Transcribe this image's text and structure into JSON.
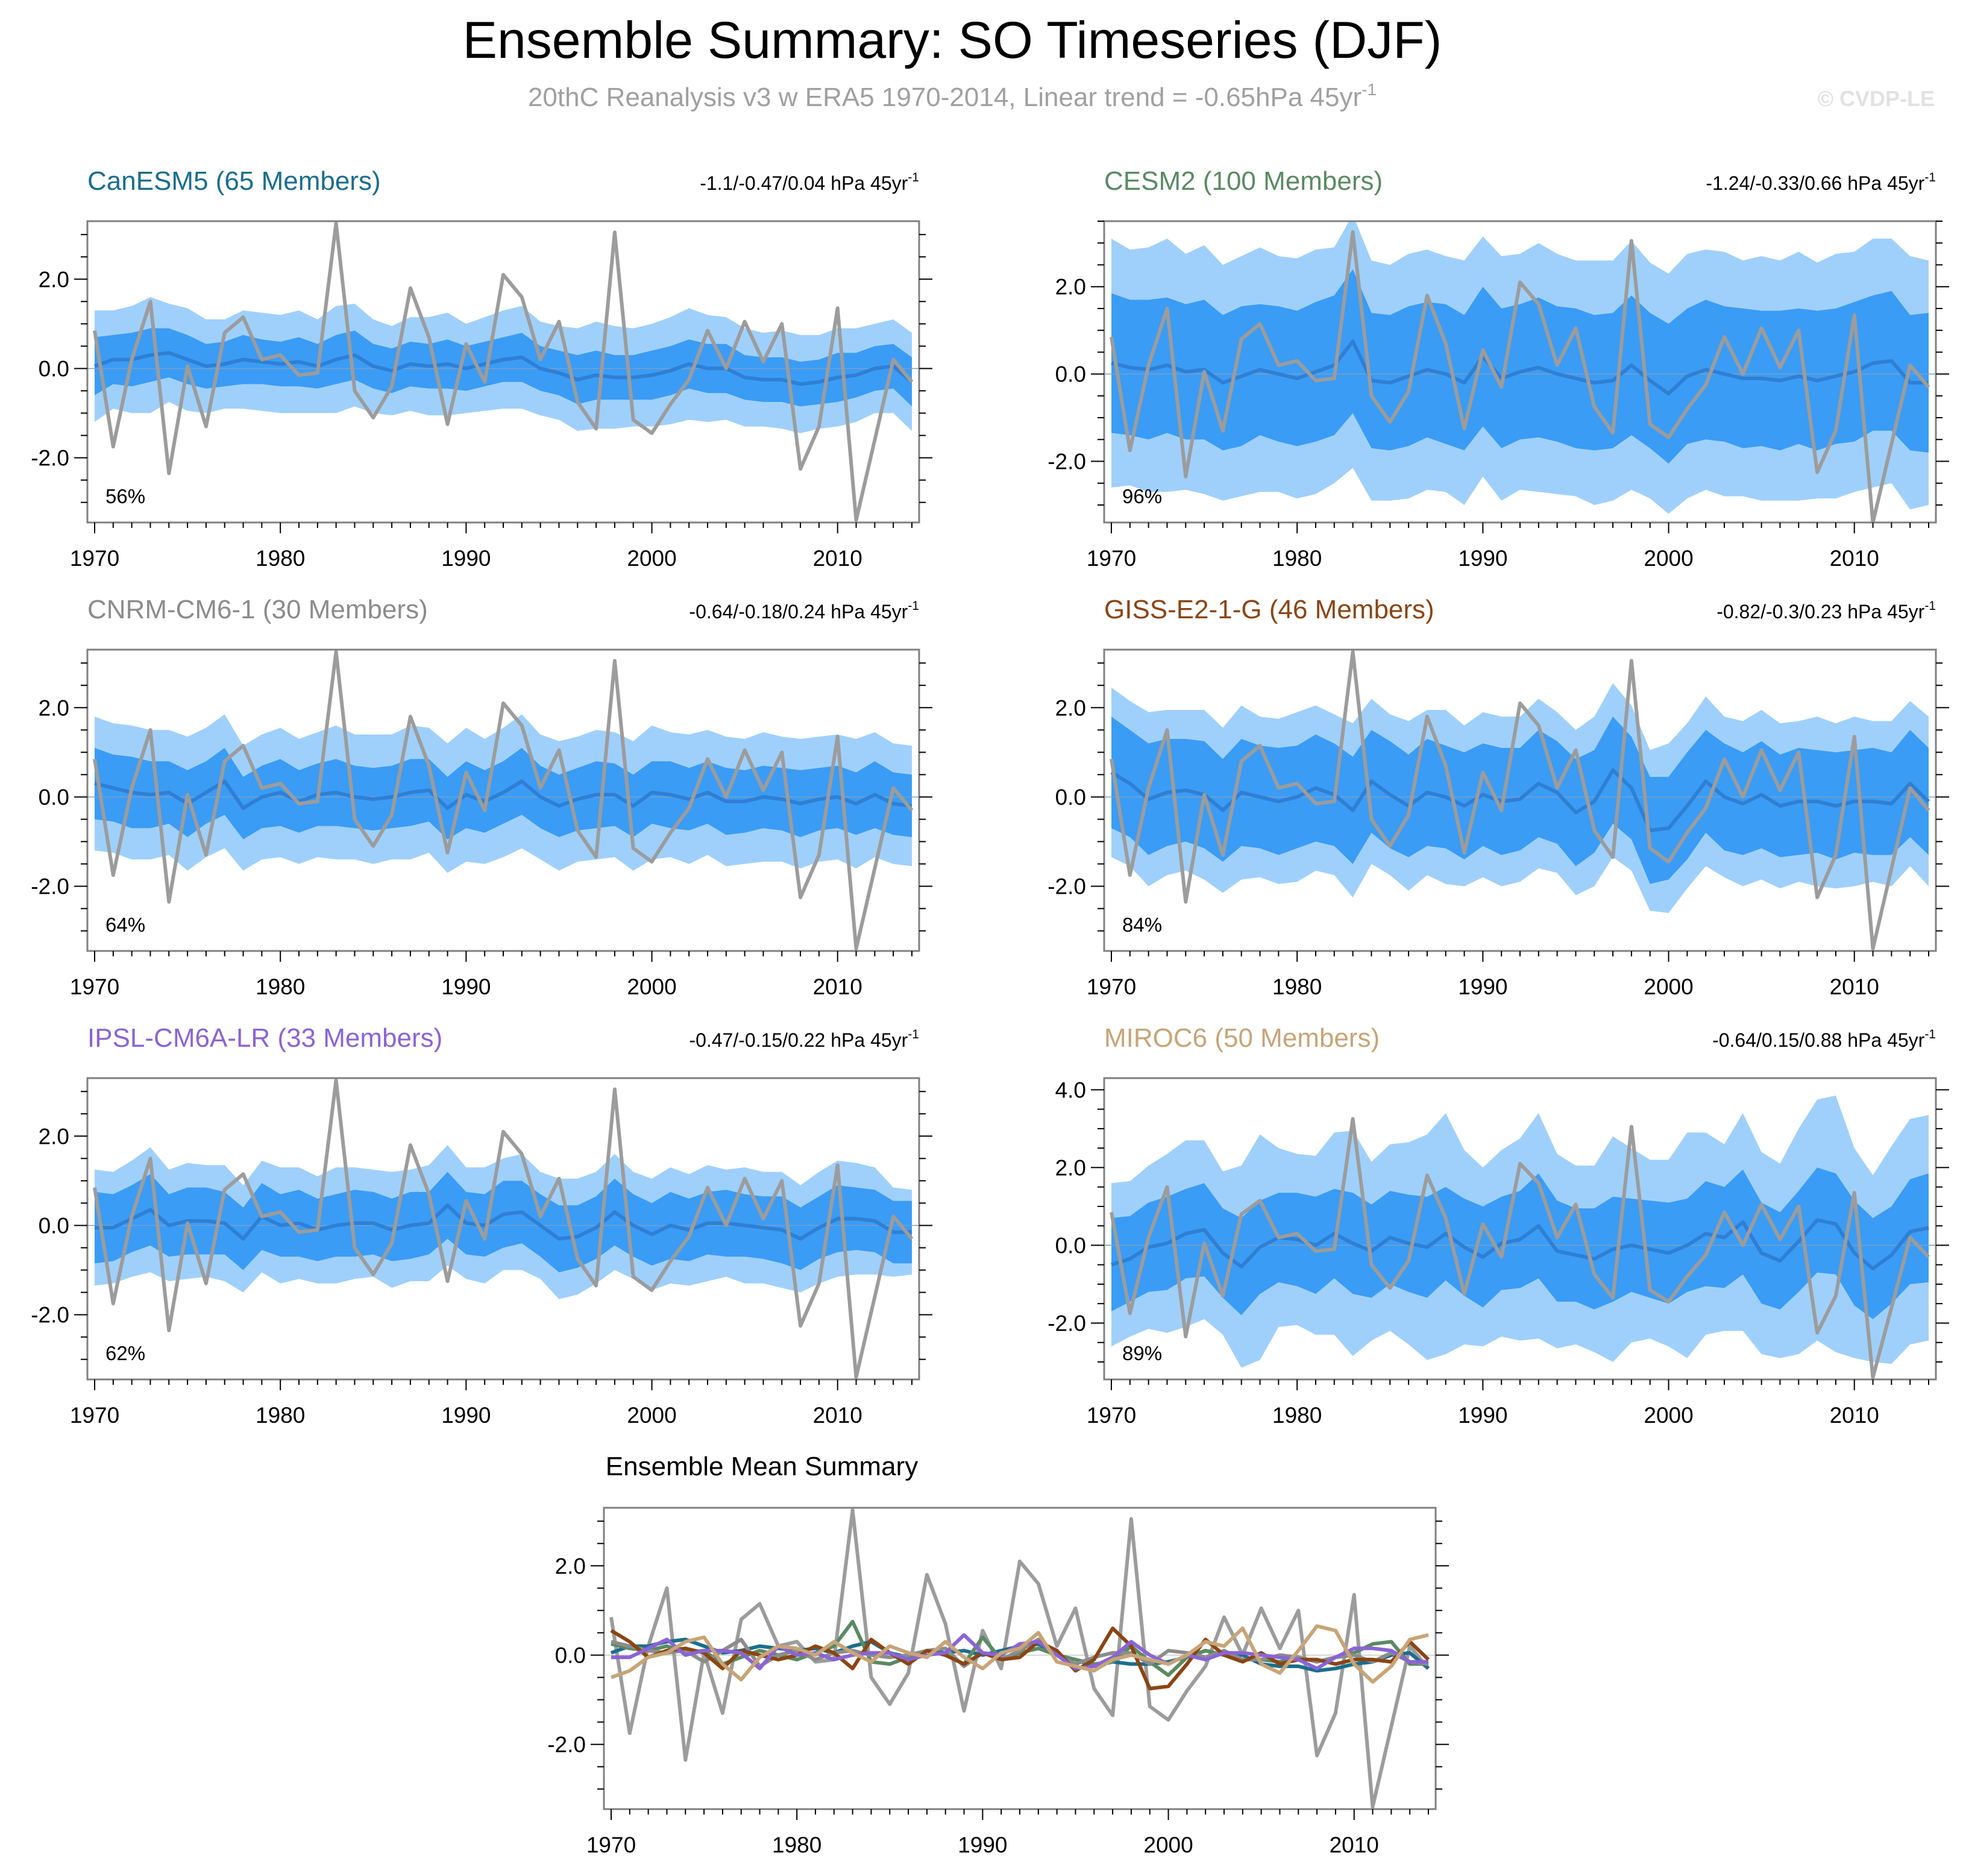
{
  "figure": {
    "title": "Ensemble Summary: SO Timeseries (DJF)",
    "subtitle": "20thC Reanalysis v3 w ERA5 1970-2014, Linear trend = -0.65hPa 45yr",
    "subtitle_sup": "-1",
    "watermark": "© CVDP-LE"
  },
  "colors": {
    "obs": "#9c9c9c",
    "spread_outer": "#9fd0fb",
    "spread_inner": "#3a9cf5",
    "ensemble_mean": "#2f7fd4",
    "frame": "#808080"
  },
  "chart_data": {
    "type": "line",
    "x_start": 1970,
    "x_end": 2014,
    "x_ticks": [
      1970,
      1980,
      1990,
      2000,
      2010
    ],
    "observation": {
      "name": "20thC Reanalysis v3 w ERA5",
      "values": [
        0.85,
        -1.75,
        0.2,
        1.5,
        -2.35,
        0.05,
        -1.3,
        0.8,
        1.15,
        0.2,
        0.3,
        -0.15,
        -0.1,
        3.25,
        -0.5,
        -1.1,
        -0.4,
        1.8,
        0.7,
        -1.25,
        0.55,
        -0.3,
        2.1,
        1.6,
        0.2,
        1.05,
        -0.75,
        -1.35,
        3.05,
        -1.15,
        -1.45,
        -0.8,
        -0.25,
        0.85,
        0.0,
        1.05,
        0.15,
        1.0,
        -2.25,
        -1.3,
        1.35,
        -3.4,
        -1.6,
        0.2,
        -0.3
      ]
    },
    "panels": [
      {
        "model": "CanESM5",
        "members": "(65 Members)",
        "color": "#1a6e8e",
        "trend": "-1.1/-0.47/0.04 hPa 45yr",
        "pct": "56%",
        "y_ticks": [
          2.0,
          0.0,
          -2.0
        ],
        "y_tick_labels": [
          "2.0",
          "0.0",
          "-2.0"
        ],
        "ylim": [
          -3.45,
          3.3
        ],
        "mean": [
          0.05,
          0.2,
          0.2,
          0.3,
          0.35,
          0.2,
          0.05,
          0.1,
          0.2,
          0.15,
          0.1,
          0.15,
          0.05,
          0.2,
          0.3,
          0.05,
          -0.05,
          0.1,
          0.05,
          0.1,
          0.0,
          0.1,
          0.2,
          0.25,
          0.0,
          -0.1,
          -0.25,
          -0.15,
          -0.2,
          -0.2,
          -0.15,
          -0.05,
          0.1,
          0.0,
          0.0,
          -0.2,
          -0.25,
          -0.25,
          -0.35,
          -0.3,
          -0.2,
          -0.15,
          0.0,
          0.05,
          -0.3
        ],
        "inner_halfwidth": [
          0.65,
          0.55,
          0.6,
          0.6,
          0.55,
          0.55,
          0.5,
          0.5,
          0.55,
          0.5,
          0.5,
          0.55,
          0.5,
          0.55,
          0.55,
          0.5,
          0.5,
          0.5,
          0.5,
          0.55,
          0.5,
          0.5,
          0.5,
          0.55,
          0.5,
          0.5,
          0.55,
          0.55,
          0.5,
          0.5,
          0.55,
          0.55,
          0.55,
          0.55,
          0.55,
          0.5,
          0.5,
          0.5,
          0.5,
          0.5,
          0.55,
          0.5,
          0.5,
          0.5,
          0.55
        ],
        "outer_halfwidth": [
          1.25,
          1.1,
          1.2,
          1.3,
          1.1,
          1.15,
          1.05,
          1.0,
          1.1,
          1.1,
          1.1,
          1.15,
          1.05,
          1.2,
          1.15,
          1.05,
          1.0,
          1.05,
          1.1,
          1.15,
          1.0,
          1.05,
          1.1,
          1.15,
          1.05,
          1.05,
          1.15,
          1.2,
          1.15,
          1.1,
          1.15,
          1.2,
          1.25,
          1.2,
          1.15,
          1.1,
          1.05,
          1.1,
          1.1,
          1.05,
          1.1,
          1.05,
          1.0,
          1.05,
          1.1
        ]
      },
      {
        "model": "CESM2",
        "members": "(100 Members)",
        "color": "#5a8a62",
        "trend": "-1.24/-0.33/0.66 hPa 45yr",
        "pct": "96%",
        "y_ticks": [
          2.0,
          0.0,
          -2.0
        ],
        "y_tick_labels": [
          "2.0",
          "0.0",
          "-2.0"
        ],
        "ylim": [
          -3.4,
          3.5
        ],
        "mean": [
          0.25,
          0.15,
          0.1,
          0.2,
          0.05,
          0.1,
          -0.2,
          -0.05,
          0.1,
          0.0,
          -0.1,
          0.05,
          0.2,
          0.75,
          -0.15,
          -0.2,
          -0.05,
          0.1,
          0.0,
          -0.2,
          0.4,
          -0.1,
          0.05,
          0.15,
          0.0,
          -0.1,
          -0.2,
          -0.15,
          0.2,
          -0.15,
          -0.45,
          -0.05,
          0.1,
          0.0,
          -0.1,
          -0.1,
          -0.15,
          -0.05,
          -0.15,
          -0.05,
          0.05,
          0.25,
          0.3,
          -0.2,
          -0.2
        ],
        "inner_halfwidth": [
          1.6,
          1.55,
          1.6,
          1.55,
          1.55,
          1.6,
          1.55,
          1.6,
          1.5,
          1.55,
          1.55,
          1.6,
          1.6,
          1.65,
          1.55,
          1.55,
          1.6,
          1.55,
          1.6,
          1.55,
          1.6,
          1.6,
          1.55,
          1.6,
          1.55,
          1.6,
          1.55,
          1.55,
          1.6,
          1.55,
          1.6,
          1.55,
          1.6,
          1.55,
          1.6,
          1.55,
          1.6,
          1.55,
          1.6,
          1.55,
          1.6,
          1.55,
          1.6,
          1.55,
          1.6
        ],
        "outer_halfwidth": [
          2.85,
          2.7,
          2.8,
          2.9,
          2.7,
          2.85,
          2.7,
          2.75,
          2.8,
          2.7,
          2.75,
          2.8,
          2.7,
          2.9,
          2.75,
          2.7,
          2.8,
          2.75,
          2.7,
          2.8,
          2.75,
          2.8,
          2.7,
          2.85,
          2.75,
          2.7,
          2.8,
          2.75,
          2.85,
          2.7,
          2.75,
          2.8,
          2.75,
          2.8,
          2.7,
          2.8,
          2.75,
          2.85,
          2.7,
          2.8,
          2.75,
          2.85,
          2.8,
          2.9,
          2.8
        ]
      },
      {
        "model": "CNRM-CM6-1",
        "members": "(30 Members)",
        "color": "#8c8c8c",
        "trend": "-0.64/-0.18/0.24 hPa 45yr",
        "pct": "64%",
        "y_ticks": [
          2.0,
          0.0,
          -2.0
        ],
        "y_tick_labels": [
          "2.0",
          "0.0",
          "-2.0"
        ],
        "ylim": [
          -3.45,
          3.3
        ],
        "mean": [
          0.3,
          0.2,
          0.1,
          0.05,
          0.1,
          -0.15,
          0.1,
          0.35,
          -0.25,
          0.0,
          0.1,
          -0.1,
          0.05,
          0.1,
          0.0,
          -0.05,
          0.0,
          0.1,
          0.15,
          -0.25,
          0.05,
          -0.1,
          0.1,
          0.35,
          0.0,
          -0.2,
          -0.05,
          0.05,
          0.05,
          -0.2,
          0.1,
          0.05,
          -0.05,
          0.1,
          -0.1,
          -0.1,
          0.0,
          -0.05,
          -0.15,
          -0.05,
          0.0,
          -0.15,
          0.05,
          -0.15,
          -0.2
        ],
        "inner_halfwidth": [
          0.8,
          0.75,
          0.8,
          0.75,
          0.7,
          0.75,
          0.7,
          0.75,
          0.7,
          0.7,
          0.75,
          0.7,
          0.7,
          0.75,
          0.7,
          0.7,
          0.7,
          0.75,
          0.7,
          0.7,
          0.75,
          0.7,
          0.7,
          0.75,
          0.7,
          0.7,
          0.7,
          0.75,
          0.7,
          0.7,
          0.7,
          0.75,
          0.7,
          0.7,
          0.75,
          0.7,
          0.7,
          0.7,
          0.75,
          0.7,
          0.7,
          0.7,
          0.75,
          0.7,
          0.7
        ],
        "outer_halfwidth": [
          1.5,
          1.45,
          1.5,
          1.45,
          1.4,
          1.5,
          1.45,
          1.5,
          1.4,
          1.4,
          1.45,
          1.4,
          1.4,
          1.5,
          1.4,
          1.45,
          1.4,
          1.5,
          1.4,
          1.45,
          1.5,
          1.4,
          1.45,
          1.5,
          1.4,
          1.45,
          1.4,
          1.45,
          1.4,
          1.45,
          1.5,
          1.4,
          1.45,
          1.4,
          1.45,
          1.4,
          1.45,
          1.4,
          1.45,
          1.4,
          1.4,
          1.45,
          1.4,
          1.35,
          1.35
        ]
      },
      {
        "model": "GISS-E2-1-G",
        "members": "(46 Members)",
        "color": "#8b4513",
        "trend": "-0.82/-0.3/0.23 hPa 45yr",
        "pct": "84%",
        "y_ticks": [
          2.0,
          0.0,
          -2.0
        ],
        "y_tick_labels": [
          "2.0",
          "0.0",
          "-2.0"
        ],
        "ylim": [
          -3.45,
          3.3
        ],
        "mean": [
          0.55,
          0.3,
          -0.05,
          0.1,
          0.15,
          0.05,
          -0.3,
          0.1,
          0.0,
          -0.1,
          0.0,
          0.2,
          0.05,
          -0.3,
          0.35,
          0.05,
          -0.2,
          0.1,
          0.0,
          -0.2,
          0.05,
          -0.1,
          -0.05,
          0.3,
          0.1,
          -0.35,
          -0.1,
          0.6,
          0.2,
          -0.75,
          -0.7,
          -0.2,
          0.35,
          0.0,
          -0.15,
          0.05,
          -0.2,
          -0.1,
          -0.1,
          -0.2,
          -0.1,
          -0.1,
          -0.15,
          0.3,
          -0.1
        ],
        "inner_halfwidth": [
          1.25,
          1.2,
          1.25,
          1.2,
          1.15,
          1.2,
          1.15,
          1.2,
          1.15,
          1.2,
          1.15,
          1.2,
          1.15,
          1.2,
          1.15,
          1.2,
          1.15,
          1.2,
          1.15,
          1.2,
          1.15,
          1.2,
          1.15,
          1.2,
          1.15,
          1.2,
          1.15,
          1.2,
          1.15,
          1.2,
          1.15,
          1.2,
          1.15,
          1.2,
          1.15,
          1.2,
          1.15,
          1.2,
          1.15,
          1.2,
          1.15,
          1.2,
          1.15,
          1.2,
          1.2
        ],
        "outer_halfwidth": [
          1.9,
          1.85,
          1.95,
          1.85,
          1.8,
          1.9,
          1.85,
          1.95,
          1.8,
          1.85,
          1.9,
          1.85,
          1.8,
          1.95,
          1.85,
          1.8,
          1.9,
          1.85,
          1.95,
          1.8,
          1.85,
          1.9,
          1.85,
          1.9,
          1.8,
          1.85,
          1.9,
          1.95,
          1.85,
          1.8,
          1.9,
          1.85,
          1.9,
          1.8,
          1.85,
          1.9,
          1.85,
          1.8,
          1.9,
          1.85,
          1.9,
          1.8,
          1.85,
          1.85,
          1.9
        ]
      },
      {
        "model": "IPSL-CM6A-LR",
        "members": "(33 Members)",
        "color": "#8a64d6",
        "trend": "-0.47/-0.15/0.22 hPa 45yr",
        "pct": "62%",
        "y_ticks": [
          2.0,
          0.0,
          -2.0
        ],
        "y_tick_labels": [
          "2.0",
          "0.0",
          "-2.0"
        ],
        "ylim": [
          -3.45,
          3.3
        ],
        "mean": [
          -0.05,
          -0.05,
          0.15,
          0.35,
          0.0,
          0.1,
          0.1,
          0.05,
          -0.3,
          0.2,
          0.0,
          0.05,
          -0.1,
          0.0,
          0.05,
          0.05,
          -0.1,
          0.0,
          0.05,
          0.45,
          0.05,
          0.0,
          0.25,
          0.3,
          0.0,
          -0.3,
          -0.25,
          -0.05,
          0.3,
          0.0,
          -0.2,
          0.0,
          -0.1,
          0.05,
          0.05,
          0.0,
          -0.05,
          -0.1,
          -0.3,
          -0.05,
          0.15,
          0.15,
          0.1,
          -0.15,
          -0.15
        ],
        "inner_halfwidth": [
          0.8,
          0.75,
          0.75,
          0.8,
          0.7,
          0.75,
          0.75,
          0.7,
          0.7,
          0.75,
          0.7,
          0.75,
          0.7,
          0.7,
          0.75,
          0.7,
          0.7,
          0.75,
          0.7,
          0.75,
          0.7,
          0.7,
          0.75,
          0.7,
          0.7,
          0.75,
          0.7,
          0.7,
          0.75,
          0.7,
          0.7,
          0.75,
          0.7,
          0.7,
          0.75,
          0.7,
          0.7,
          0.75,
          0.7,
          0.7,
          0.75,
          0.7,
          0.7,
          0.7,
          0.7
        ],
        "outer_halfwidth": [
          1.3,
          1.25,
          1.3,
          1.4,
          1.25,
          1.3,
          1.25,
          1.3,
          1.2,
          1.25,
          1.3,
          1.25,
          1.2,
          1.3,
          1.25,
          1.2,
          1.3,
          1.25,
          1.3,
          1.35,
          1.25,
          1.3,
          1.25,
          1.3,
          1.2,
          1.35,
          1.3,
          1.25,
          1.3,
          1.2,
          1.25,
          1.3,
          1.25,
          1.3,
          1.2,
          1.3,
          1.25,
          1.3,
          1.2,
          1.25,
          1.3,
          1.25,
          1.2,
          1.0,
          0.95
        ]
      },
      {
        "model": "MIROC6",
        "members": "(50 Members)",
        "color": "#c8a477",
        "trend": "-0.64/0.15/0.88 hPa 45yr",
        "pct": "89%",
        "y_ticks": [
          4.0,
          2.0,
          0.0,
          -2.0
        ],
        "y_tick_labels": [
          "4.0",
          "2.0",
          "0.0",
          "-2.0"
        ],
        "ylim": [
          -3.45,
          4.3
        ],
        "mean": [
          -0.5,
          -0.35,
          -0.05,
          0.05,
          0.3,
          0.4,
          -0.2,
          -0.55,
          -0.05,
          0.2,
          0.15,
          0.0,
          0.3,
          0.05,
          -0.15,
          0.2,
          0.05,
          -0.05,
          0.3,
          -0.05,
          -0.3,
          0.05,
          0.15,
          0.5,
          -0.15,
          -0.25,
          -0.35,
          -0.1,
          0.0,
          -0.1,
          -0.2,
          0.0,
          0.3,
          0.2,
          0.6,
          -0.2,
          -0.4,
          0.1,
          0.65,
          0.55,
          -0.2,
          -0.6,
          -0.25,
          0.35,
          0.45
        ],
        "inner_halfwidth": [
          1.2,
          1.1,
          1.15,
          1.2,
          1.15,
          1.2,
          1.15,
          1.25,
          1.2,
          1.15,
          1.2,
          1.25,
          1.15,
          1.3,
          1.2,
          1.2,
          1.25,
          1.3,
          1.2,
          1.25,
          1.3,
          1.2,
          1.25,
          1.35,
          1.3,
          1.2,
          1.3,
          1.35,
          1.2,
          1.25,
          1.3,
          1.2,
          1.35,
          1.3,
          1.35,
          1.3,
          1.25,
          1.3,
          1.35,
          1.3,
          1.35,
          1.3,
          1.25,
          1.35,
          1.4
        ],
        "outer_halfwidth": [
          2.1,
          2.0,
          2.1,
          2.3,
          2.4,
          2.3,
          2.1,
          2.6,
          2.9,
          2.3,
          2.2,
          2.3,
          2.6,
          2.9,
          2.3,
          2.4,
          2.6,
          2.9,
          3.1,
          2.5,
          2.3,
          2.4,
          2.6,
          2.9,
          2.5,
          2.3,
          2.4,
          2.9,
          2.5,
          2.3,
          2.4,
          2.9,
          2.6,
          2.4,
          2.8,
          2.6,
          2.5,
          2.9,
          3.1,
          3.3,
          2.7,
          2.4,
          2.8,
          2.9,
          2.9
        ]
      }
    ],
    "summary": {
      "title": "Ensemble Mean Summary",
      "y_ticks": [
        2.0,
        0.0,
        -2.0
      ],
      "y_tick_labels": [
        "2.0",
        "0.0",
        "-2.0"
      ],
      "ylim": [
        -3.45,
        3.3
      ]
    }
  }
}
